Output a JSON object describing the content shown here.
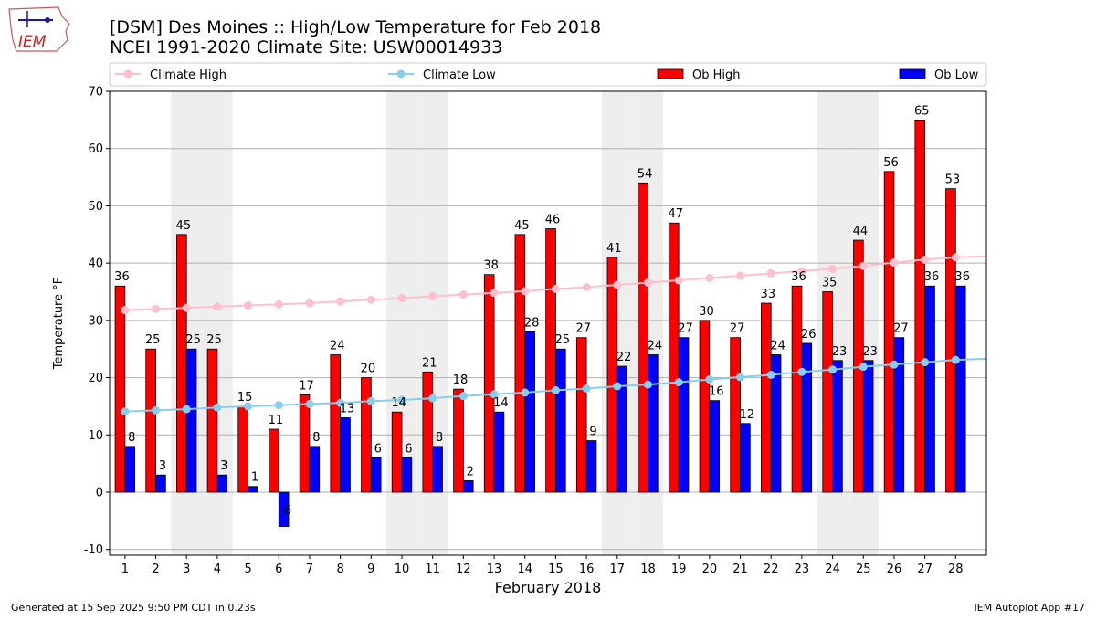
{
  "header": {
    "logo_text": "IEM",
    "title_line1": "[DSM] Des Moines :: High/Low Temperature for Feb 2018",
    "title_line2": "NCEI 1991-2020 Climate Site: USW00014933"
  },
  "footer": {
    "generated": "Generated at 15 Sep 2025 9:50 PM CDT in 0.23s",
    "app": "IEM Autoplot App #17"
  },
  "colors": {
    "ob_high": "#ff0000",
    "ob_low": "#0000ff",
    "climate_high": "#ffc0cb",
    "climate_low": "#87ceeb",
    "weekend_band": "#eeeeee",
    "grid": "#b0b0b0"
  },
  "chart_data": {
    "type": "bar",
    "xlabel": "February 2018",
    "ylabel": "Temperature °F",
    "ylim": [
      -11,
      70
    ],
    "yticks": [
      -10,
      0,
      10,
      20,
      30,
      40,
      50,
      60,
      70
    ],
    "grid": "horizontal",
    "legend_position": "top",
    "categories": [
      "1",
      "2",
      "3",
      "4",
      "5",
      "6",
      "7",
      "8",
      "9",
      "10",
      "11",
      "12",
      "13",
      "14",
      "15",
      "16",
      "17",
      "18",
      "19",
      "20",
      "21",
      "22",
      "23",
      "24",
      "25",
      "26",
      "27",
      "28"
    ],
    "shaded_days": [
      3,
      4,
      10,
      11,
      17,
      18,
      24,
      25
    ],
    "series": [
      {
        "name": "Climate High",
        "kind": "line",
        "values": [
          31.8,
          32.0,
          32.2,
          32.4,
          32.6,
          32.8,
          33.0,
          33.3,
          33.6,
          33.9,
          34.2,
          34.5,
          34.8,
          35.1,
          35.5,
          35.8,
          36.2,
          36.6,
          37.0,
          37.4,
          37.8,
          38.2,
          38.6,
          39.0,
          39.5,
          40.1,
          40.6,
          41.0
        ]
      },
      {
        "name": "Climate Low",
        "kind": "line",
        "values": [
          14.1,
          14.3,
          14.5,
          14.8,
          15.0,
          15.2,
          15.4,
          15.6,
          15.9,
          16.1,
          16.4,
          16.8,
          17.1,
          17.4,
          17.8,
          18.1,
          18.5,
          18.8,
          19.2,
          19.7,
          20.1,
          20.5,
          21.0,
          21.4,
          21.9,
          22.3,
          22.7,
          23.1
        ]
      },
      {
        "name": "Ob High",
        "kind": "bar",
        "values": [
          36,
          25,
          45,
          25,
          15,
          11,
          17,
          24,
          20,
          14,
          21,
          18,
          38,
          45,
          46,
          27,
          41,
          54,
          47,
          30,
          27,
          33,
          36,
          35,
          44,
          56,
          65,
          53
        ]
      },
      {
        "name": "Ob Low",
        "kind": "bar",
        "values": [
          8,
          3,
          25,
          3,
          1,
          -6,
          8,
          13,
          6,
          6,
          8,
          2,
          14,
          28,
          25,
          9,
          22,
          24,
          27,
          16,
          12,
          24,
          26,
          23,
          23,
          27,
          36,
          36
        ]
      }
    ]
  }
}
